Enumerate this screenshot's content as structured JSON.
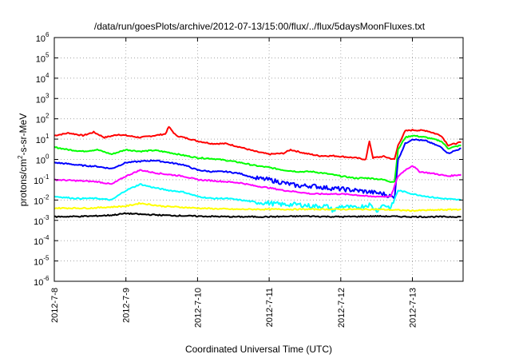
{
  "chart_data": {
    "type": "line",
    "title": "/data/run/goesPlots/archive/2012-07-13/15:00/flux/../flux/5daysMoonFluxes.txt",
    "xlabel": "Coordinated Universal Time (UTC)",
    "ylabel": "protons/cm2-s-sr-MeV",
    "ylabel_parts": {
      "prefix": "protons/cm",
      "sup": "2",
      "suffix": "-s-sr-MeV"
    },
    "yscale": "log",
    "ylim_exponents": [
      -6,
      6
    ],
    "y_tick_labels": [
      {
        "base": "10",
        "exp": "-6"
      },
      {
        "base": "10",
        "exp": "-5"
      },
      {
        "base": "10",
        "exp": "-4"
      },
      {
        "base": "10",
        "exp": "-3"
      },
      {
        "base": "10",
        "exp": "-2"
      },
      {
        "base": "10",
        "exp": "-1"
      },
      {
        "base": "10",
        "exp": "0"
      },
      {
        "base": "10",
        "exp": "1"
      },
      {
        "base": "10",
        "exp": "2"
      },
      {
        "base": "10",
        "exp": "3"
      },
      {
        "base": "10",
        "exp": "4"
      },
      {
        "base": "10",
        "exp": "5"
      },
      {
        "base": "10",
        "exp": "6"
      }
    ],
    "x_ticks": [
      "2012-7-8",
      "2012-7-9",
      "2012-7-10",
      "2012-7-11",
      "2012-7-12",
      "2012-7-13"
    ],
    "x_range_days": [
      0,
      5.68
    ],
    "grid": true,
    "series": [
      {
        "color": "#ff0000",
        "x": [
          0,
          0.2,
          0.4,
          0.55,
          0.7,
          0.9,
          1.0,
          1.2,
          1.4,
          1.55,
          1.6,
          1.7,
          1.9,
          2.0,
          2.2,
          2.4,
          2.6,
          2.8,
          3.0,
          3.2,
          3.3,
          3.5,
          3.7,
          3.9,
          4.0,
          4.2,
          4.35,
          4.4,
          4.45,
          4.6,
          4.7,
          4.75,
          4.8,
          4.9,
          5.0,
          5.2,
          5.4,
          5.5,
          5.68
        ],
        "y": [
          15,
          20,
          15,
          22,
          12,
          17,
          15,
          12,
          15,
          18,
          40,
          15,
          10,
          8,
          6,
          6,
          4,
          2.5,
          1.8,
          2,
          3,
          2,
          1.5,
          1.5,
          1.4,
          1.2,
          1.0,
          8,
          1.2,
          1.4,
          1.1,
          1.0,
          5,
          25,
          28,
          26,
          15,
          5,
          7
        ]
      },
      {
        "color": "#00ff00",
        "x": [
          0,
          0.2,
          0.4,
          0.6,
          0.8,
          1.0,
          1.2,
          1.4,
          1.6,
          1.8,
          2.0,
          2.2,
          2.4,
          2.6,
          2.8,
          3.0,
          3.2,
          3.4,
          3.6,
          3.8,
          4.0,
          4.2,
          4.4,
          4.6,
          4.7,
          4.75,
          4.8,
          4.9,
          5.0,
          5.2,
          5.4,
          5.5,
          5.68
        ],
        "y": [
          4,
          3,
          2.5,
          3,
          1.8,
          3,
          2.5,
          2.8,
          2.2,
          1.6,
          1.2,
          1.1,
          0.9,
          0.7,
          0.5,
          0.4,
          0.3,
          0.25,
          0.25,
          0.2,
          0.15,
          0.12,
          0.12,
          0.1,
          0.08,
          0.08,
          3,
          12,
          15,
          12,
          8,
          3.5,
          5
        ]
      },
      {
        "color": "#0000ff",
        "x": [
          0,
          0.2,
          0.4,
          0.6,
          0.8,
          1.0,
          1.2,
          1.4,
          1.6,
          1.8,
          2.0,
          2.2,
          2.4,
          2.6,
          2.8,
          3.0,
          3.2,
          3.4,
          3.6,
          3.8,
          4.0,
          4.2,
          4.4,
          4.6,
          4.7,
          4.75,
          4.8,
          4.9,
          5.0,
          5.2,
          5.4,
          5.5,
          5.68
        ],
        "y": [
          0.7,
          0.6,
          0.5,
          0.45,
          0.35,
          0.7,
          0.8,
          0.9,
          0.7,
          0.55,
          0.3,
          0.25,
          0.25,
          0.2,
          0.12,
          0.1,
          0.07,
          0.05,
          0.05,
          0.04,
          0.035,
          0.03,
          0.025,
          0.02,
          0.015,
          0.012,
          1,
          6,
          10,
          8,
          4,
          2,
          3.5
        ]
      },
      {
        "color": "#ff00ff",
        "x": [
          0,
          0.3,
          0.6,
          0.8,
          1.0,
          1.2,
          1.4,
          1.6,
          1.8,
          2.0,
          2.2,
          2.4,
          2.6,
          2.8,
          3.0,
          3.2,
          3.4,
          3.6,
          3.8,
          4.0,
          4.2,
          4.4,
          4.6,
          4.7,
          4.8,
          4.9,
          5.0,
          5.1,
          5.3,
          5.5,
          5.68
        ],
        "y": [
          0.1,
          0.09,
          0.08,
          0.06,
          0.15,
          0.3,
          0.22,
          0.18,
          0.15,
          0.1,
          0.09,
          0.08,
          0.07,
          0.05,
          0.04,
          0.03,
          0.025,
          0.02,
          0.02,
          0.02,
          0.018,
          0.015,
          0.015,
          0.015,
          0.15,
          0.3,
          0.5,
          0.25,
          0.2,
          0.15,
          0.18
        ]
      },
      {
        "color": "#00ffff",
        "x": [
          0,
          0.3,
          0.6,
          0.8,
          1.0,
          1.2,
          1.4,
          1.6,
          1.8,
          2.0,
          2.2,
          2.4,
          2.6,
          2.8,
          3.0,
          3.2,
          3.4,
          3.6,
          3.8,
          3.9,
          4.0,
          4.2,
          4.4,
          4.5,
          4.6,
          4.7,
          4.8,
          4.9,
          5.0,
          5.2,
          5.4,
          5.68
        ],
        "y": [
          0.015,
          0.012,
          0.012,
          0.01,
          0.03,
          0.06,
          0.04,
          0.03,
          0.025,
          0.015,
          0.012,
          0.012,
          0.01,
          0.008,
          0.007,
          0.006,
          0.006,
          0.005,
          0.005,
          0.003,
          0.005,
          0.004,
          0.006,
          0.003,
          0.006,
          0.004,
          0.03,
          0.025,
          0.02,
          0.015,
          0.012,
          0.01
        ]
      },
      {
        "color": "#ffff00",
        "x": [
          0,
          0.5,
          1.0,
          1.2,
          1.5,
          2.0,
          2.5,
          3.0,
          3.5,
          4.0,
          4.5,
          5.0,
          5.68
        ],
        "y": [
          0.004,
          0.004,
          0.005,
          0.007,
          0.005,
          0.004,
          0.0035,
          0.0035,
          0.0035,
          0.0035,
          0.0035,
          0.003,
          0.0035
        ]
      },
      {
        "color": "#000000",
        "x": [
          0,
          0.5,
          0.8,
          1.0,
          1.2,
          1.5,
          2.0,
          2.5,
          3.0,
          3.5,
          4.0,
          4.5,
          5.0,
          5.68
        ],
        "y": [
          0.0015,
          0.0016,
          0.0018,
          0.0022,
          0.002,
          0.0018,
          0.0016,
          0.0015,
          0.0015,
          0.0016,
          0.0015,
          0.0016,
          0.0015,
          0.0015
        ]
      }
    ]
  }
}
